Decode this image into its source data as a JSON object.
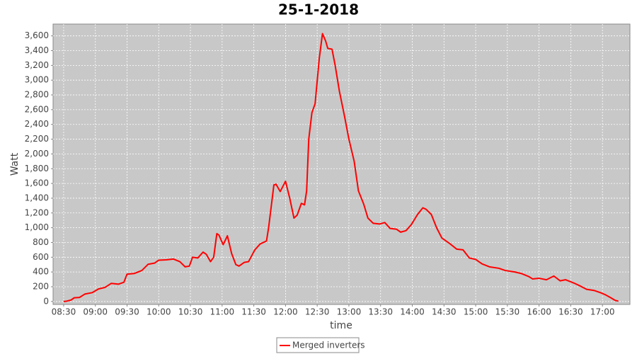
{
  "chart_data": {
    "type": "line",
    "title": "25-1-2018",
    "x_label": "time",
    "y_label": "Watt",
    "grid": true,
    "legend": "bottom",
    "xlim": [
      "08:20",
      "17:26"
    ],
    "xticks": [
      "08:30",
      "09:00",
      "09:30",
      "10:00",
      "10:30",
      "11:00",
      "11:30",
      "12:00",
      "12:30",
      "13:00",
      "13:30",
      "14:00",
      "14:30",
      "15:00",
      "15:30",
      "16:00",
      "16:30",
      "17:00"
    ],
    "ylim": [
      -40,
      3760
    ],
    "yticks": [
      0,
      200,
      400,
      600,
      800,
      {
        "value": 1000,
        "label": "1,000"
      },
      {
        "value": 1200,
        "label": "1,200"
      },
      {
        "value": 1400,
        "label": "1,400"
      },
      {
        "value": 1600,
        "label": "1,600"
      },
      {
        "value": 1800,
        "label": "1,800"
      },
      {
        "value": 2000,
        "label": "2,000"
      },
      {
        "value": 2200,
        "label": "2,200"
      },
      {
        "value": 2400,
        "label": "2,400"
      },
      {
        "value": 2600,
        "label": "2,600"
      },
      {
        "value": 2800,
        "label": "2,800"
      },
      {
        "value": 3000,
        "label": "3,000"
      },
      {
        "value": 3200,
        "label": "3,200"
      },
      {
        "value": 3400,
        "label": "3,400"
      },
      {
        "value": 3600,
        "label": "3,600"
      }
    ],
    "x": [
      "08:30",
      "08:33",
      "08:37",
      "08:40",
      "08:45",
      "08:50",
      "08:57",
      "09:03",
      "09:09",
      "09:15",
      "09:22",
      "09:27",
      "09:30",
      "09:37",
      "09:44",
      "09:50",
      "09:56",
      "10:00",
      "10:07",
      "10:14",
      "10:20",
      "10:25",
      "10:29",
      "10:32",
      "10:37",
      "10:42",
      "10:45",
      "10:49",
      "10:52",
      "10:55",
      "10:57",
      "11:01",
      "11:05",
      "11:09",
      "11:13",
      "11:16",
      "11:21",
      "11:25",
      "11:31",
      "11:36",
      "11:42",
      "11:44",
      "11:49",
      "11:51",
      "11:55",
      "12:00",
      "12:04",
      "12:08",
      "12:11",
      "12:15",
      "12:18",
      "12:20",
      "12:22",
      "12:25",
      "12:28",
      "12:32",
      "12:35",
      "12:38",
      "12:40",
      "12:44",
      "12:47",
      "12:51",
      "12:56",
      "13:00",
      "13:05",
      "13:09",
      "13:14",
      "13:18",
      "13:23",
      "13:29",
      "13:34",
      "13:39",
      "13:45",
      "13:49",
      "13:54",
      "13:59",
      "14:05",
      "14:10",
      "14:13",
      "14:18",
      "14:23",
      "14:28",
      "14:35",
      "14:42",
      "14:48",
      "14:54",
      "15:00",
      "15:06",
      "15:13",
      "15:22",
      "15:28",
      "15:37",
      "15:43",
      "15:50",
      "15:54",
      "16:00",
      "16:07",
      "16:14",
      "16:20",
      "16:25",
      "16:33",
      "16:39",
      "16:45",
      "16:52",
      "16:58",
      "17:03",
      "17:08",
      "17:12",
      "17:15"
    ],
    "series": [
      {
        "name": "Merged inverters",
        "color": "#ff0000",
        "values": [
          0,
          5,
          20,
          50,
          55,
          100,
          120,
          170,
          190,
          245,
          235,
          260,
          370,
          380,
          420,
          505,
          520,
          560,
          565,
          575,
          540,
          470,
          480,
          600,
          590,
          670,
          640,
          540,
          600,
          920,
          900,
          770,
          890,
          650,
          500,
          480,
          530,
          540,
          700,
          780,
          820,
          1000,
          1580,
          1590,
          1490,
          1630,
          1400,
          1130,
          1170,
          1330,
          1310,
          1500,
          2200,
          2560,
          2680,
          3300,
          3630,
          3530,
          3430,
          3420,
          3200,
          2850,
          2500,
          2200,
          1900,
          1500,
          1320,
          1130,
          1060,
          1050,
          1070,
          990,
          980,
          940,
          960,
          1040,
          1180,
          1270,
          1250,
          1180,
          1000,
          860,
          790,
          710,
          700,
          590,
          570,
          510,
          470,
          450,
          420,
          400,
          380,
          340,
          305,
          315,
          295,
          345,
          280,
          295,
          250,
          210,
          165,
          150,
          120,
          90,
          50,
          15,
          5
        ]
      }
    ]
  }
}
